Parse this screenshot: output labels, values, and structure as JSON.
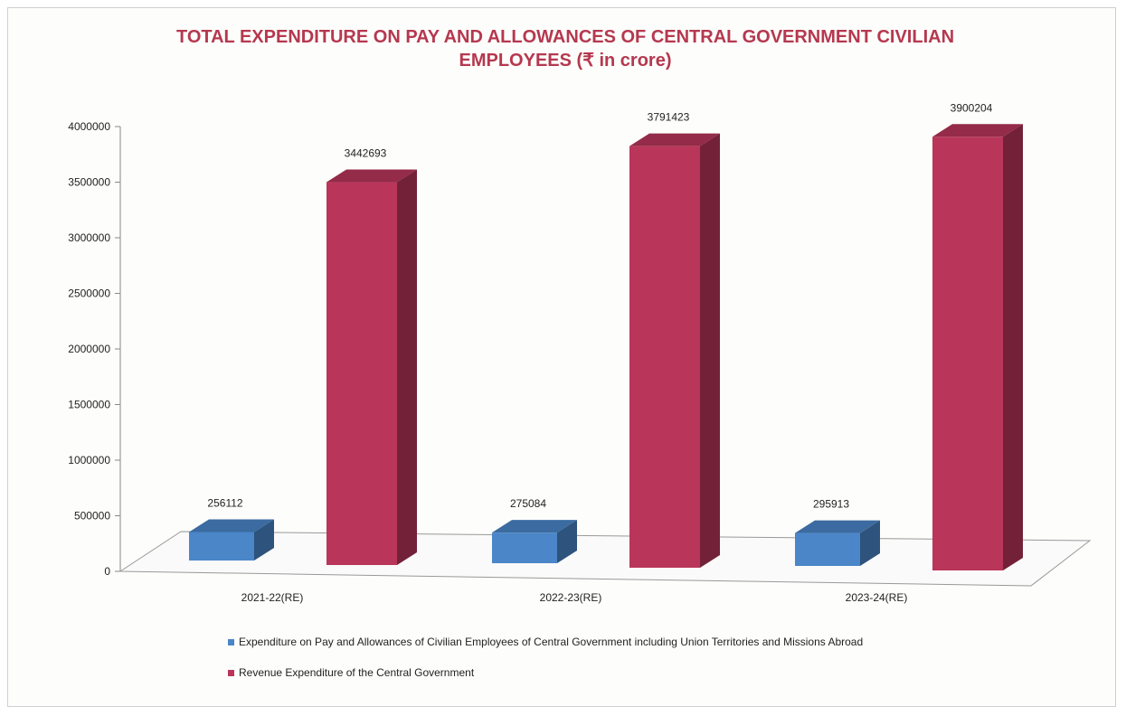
{
  "chart_data": {
    "type": "bar",
    "title": "TOTAL EXPENDITURE ON PAY AND ALLOWANCES OF CENTRAL GOVERNMENT CIVILIAN EMPLOYEES (₹ in crore)",
    "title_line1": "TOTAL EXPENDITURE ON PAY AND ALLOWANCES OF CENTRAL GOVERNMENT CIVILIAN",
    "title_line2": "EMPLOYEES (₹ in crore)",
    "categories": [
      "2021-22(RE)",
      "2022-23(RE)",
      "2023-24(RE)"
    ],
    "series": [
      {
        "name": "Expenditure on Pay and Allowances of Civilian Employees of Central Government including  Union Territories and Missions Abroad",
        "values": [
          256112,
          275084,
          295913
        ],
        "color": "#4a86c8"
      },
      {
        "name": "Revenue Expenditure of the Central Government",
        "values": [
          3442693,
          3791423,
          3900204
        ],
        "color": "#b9365a"
      }
    ],
    "y_ticks": [
      "0",
      "500000",
      "1000000",
      "1500000",
      "2000000",
      "2500000",
      "3000000",
      "3500000",
      "4000000"
    ],
    "ylim": [
      0,
      4000000
    ],
    "xlabel": "",
    "ylabel": "",
    "legend_position": "bottom",
    "style": "3d-columns"
  }
}
